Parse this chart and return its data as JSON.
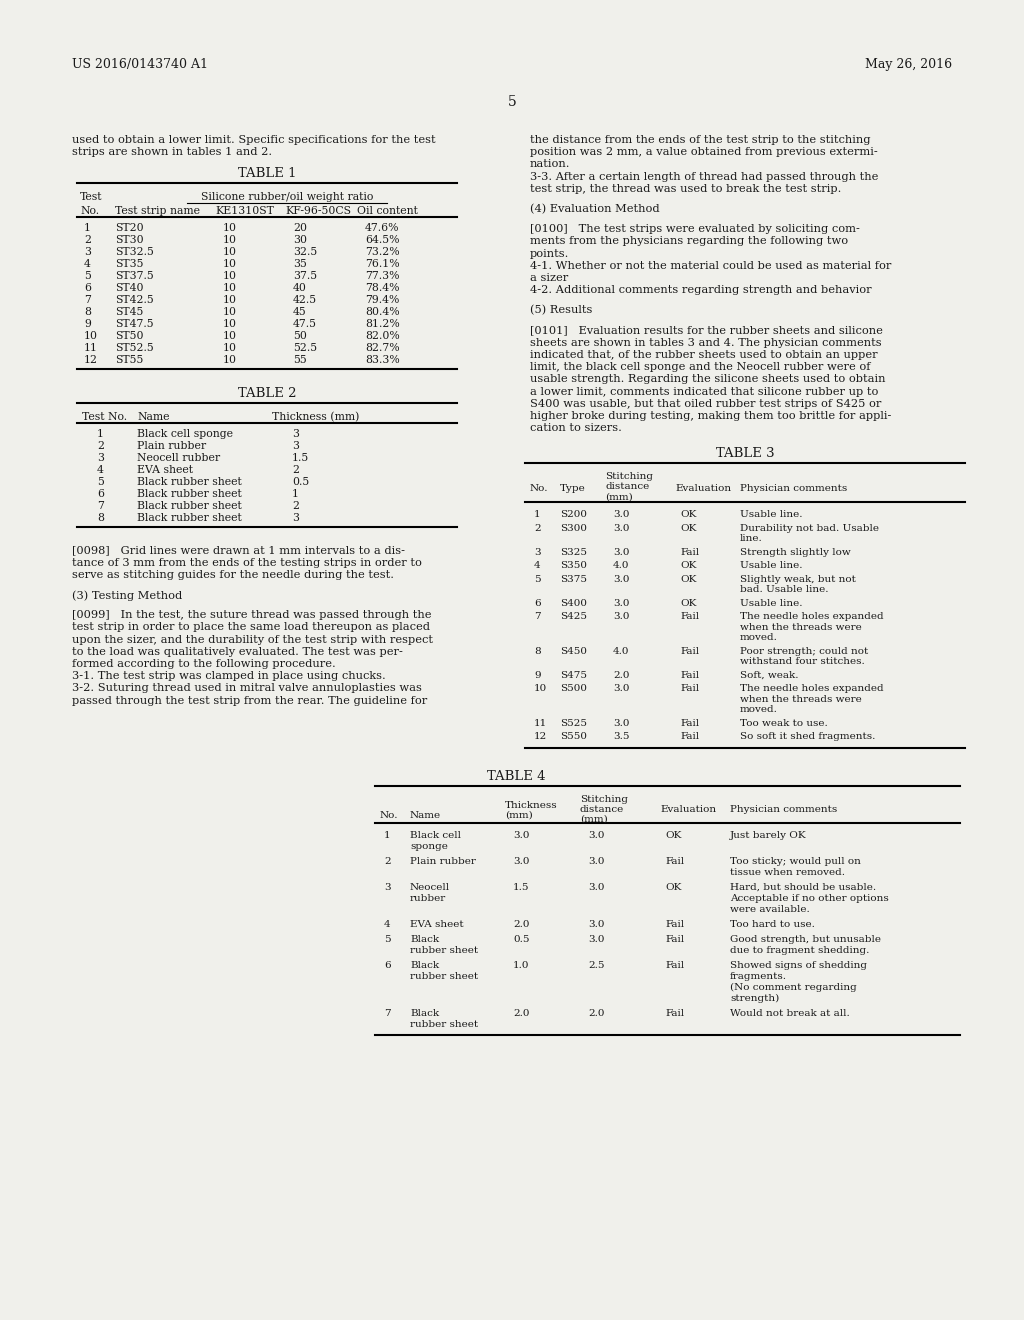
{
  "header_left": "US 2016/0143740 A1",
  "header_right": "May 26, 2016",
  "page_number": "5",
  "bg_color": "#f0f0eb",
  "text_color": "#1a1a1a",
  "table1": {
    "rows": [
      [
        "1",
        "ST20",
        "10",
        "20",
        "47.6%"
      ],
      [
        "2",
        "ST30",
        "10",
        "30",
        "64.5%"
      ],
      [
        "3",
        "ST32.5",
        "10",
        "32.5",
        "73.2%"
      ],
      [
        "4",
        "ST35",
        "10",
        "35",
        "76.1%"
      ],
      [
        "5",
        "ST37.5",
        "10",
        "37.5",
        "77.3%"
      ],
      [
        "6",
        "ST40",
        "10",
        "40",
        "78.4%"
      ],
      [
        "7",
        "ST42.5",
        "10",
        "42.5",
        "79.4%"
      ],
      [
        "8",
        "ST45",
        "10",
        "45",
        "80.4%"
      ],
      [
        "9",
        "ST47.5",
        "10",
        "47.5",
        "81.2%"
      ],
      [
        "10",
        "ST50",
        "10",
        "50",
        "82.0%"
      ],
      [
        "11",
        "ST52.5",
        "10",
        "52.5",
        "82.7%"
      ],
      [
        "12",
        "ST55",
        "10",
        "55",
        "83.3%"
      ]
    ]
  },
  "table2": {
    "rows": [
      [
        "1",
        "Black cell sponge",
        "3"
      ],
      [
        "2",
        "Plain rubber",
        "3"
      ],
      [
        "3",
        "Neocell rubber",
        "1.5"
      ],
      [
        "4",
        "EVA sheet",
        "2"
      ],
      [
        "5",
        "Black rubber sheet",
        "0.5"
      ],
      [
        "6",
        "Black rubber sheet",
        "1"
      ],
      [
        "7",
        "Black rubber sheet",
        "2"
      ],
      [
        "8",
        "Black rubber sheet",
        "3"
      ]
    ]
  },
  "table3": {
    "rows": [
      [
        "1",
        "S200",
        "3.0",
        "OK",
        "Usable line."
      ],
      [
        "2",
        "S300",
        "3.0",
        "OK",
        "Durability not bad. Usable line."
      ],
      [
        "3",
        "S325",
        "3.0",
        "Fail",
        "Strength slightly low"
      ],
      [
        "4",
        "S350",
        "4.0",
        "OK",
        "Usable line."
      ],
      [
        "5",
        "S375",
        "3.0",
        "OK",
        "Slightly weak, but not bad. Usable line."
      ],
      [
        "6",
        "S400",
        "3.0",
        "OK",
        "Usable line."
      ],
      [
        "7",
        "S425",
        "3.0",
        "Fail",
        "The needle holes expanded when the threads were moved."
      ],
      [
        "8",
        "S450",
        "4.0",
        "Fail",
        "Poor strength; could not withstand four stitches."
      ],
      [
        "9",
        "S475",
        "2.0",
        "Fail",
        "Soft, weak."
      ],
      [
        "10",
        "S500",
        "3.0",
        "Fail",
        "The needle holes expanded when the threads were moved."
      ],
      [
        "11",
        "S525",
        "3.0",
        "Fail",
        "Too weak to use."
      ],
      [
        "12",
        "S550",
        "3.5",
        "Fail",
        "So soft it shed fragments."
      ]
    ]
  },
  "table4": {
    "rows": [
      [
        "1",
        "Black cell\nsponge",
        "3.0",
        "3.0",
        "OK",
        "Just barely OK"
      ],
      [
        "2",
        "Plain rubber",
        "3.0",
        "3.0",
        "Fail",
        "Too sticky; would pull on\ntissue when removed."
      ],
      [
        "3",
        "Neocell\nrubber",
        "1.5",
        "3.0",
        "OK",
        "Hard, but should be usable.\nAcceptable if no other options\nwere available."
      ],
      [
        "4",
        "EVA sheet",
        "2.0",
        "3.0",
        "Fail",
        "Too hard to use."
      ],
      [
        "5",
        "Black\nrubber sheet",
        "0.5",
        "3.0",
        "Fail",
        "Good strength, but unusable\ndue to fragment shedding."
      ],
      [
        "6",
        "Black\nrubber sheet",
        "1.0",
        "2.5",
        "Fail",
        "Showed signs of shedding\nfragments.\n(No comment regarding\nstrength)"
      ],
      [
        "7",
        "Black\nrubber sheet",
        "2.0",
        "2.0",
        "Fail",
        "Would not break at all."
      ]
    ]
  }
}
